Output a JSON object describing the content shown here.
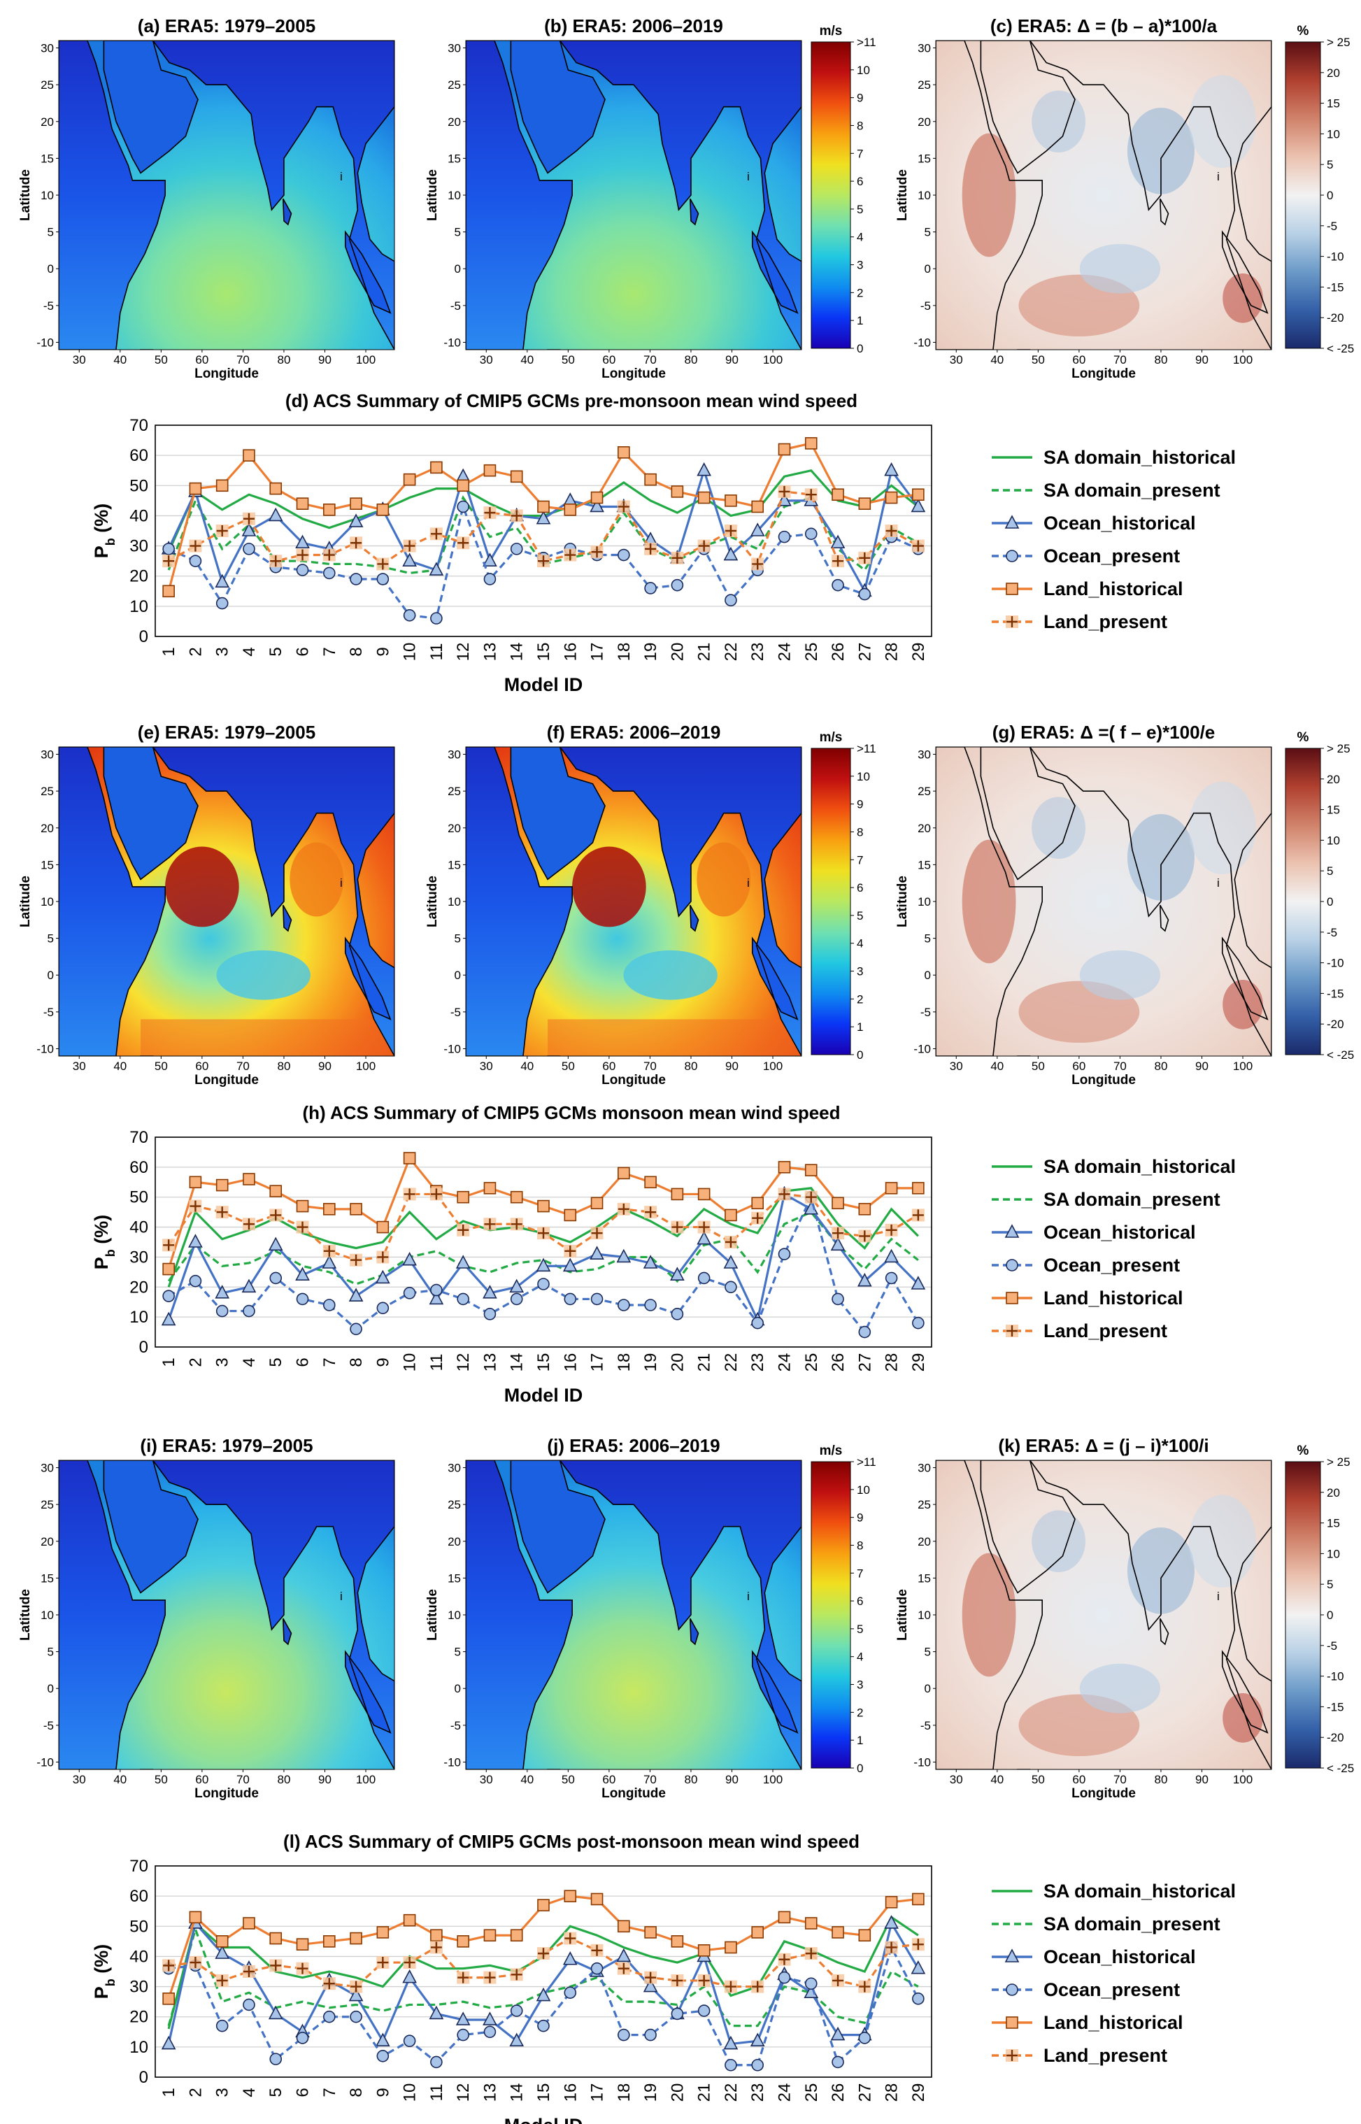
{
  "map_panels": [
    {
      "title": "(a) ERA5: 1979–2005",
      "kind": "speed",
      "season": "pre"
    },
    {
      "title": "(b) ERA5: 2006–2019",
      "kind": "speed",
      "season": "pre"
    },
    {
      "title": "(c) ERA5: Δ = (b – a)*100/a",
      "kind": "diff",
      "season": "pre"
    },
    {
      "title": "(e) ERA5: 1979–2005",
      "kind": "speed",
      "season": "mon"
    },
    {
      "title": "(f) ERA5: 2006–2019",
      "kind": "speed",
      "season": "mon"
    },
    {
      "title": "(g) ERA5: Δ =( f – e)*100/e",
      "kind": "diff",
      "season": "mon"
    },
    {
      "title": "(i) ERA5: 1979–2005",
      "kind": "speed",
      "season": "post"
    },
    {
      "title": "(j) ERA5: 2006–2019",
      "kind": "speed",
      "season": "post"
    },
    {
      "title": "(k) ERA5: Δ = (j – i)*100/i",
      "kind": "diff",
      "season": "post"
    }
  ],
  "map_axes": {
    "xlabel": "Longitude",
    "ylabel": "Latitude",
    "xticks": [
      "30",
      "40",
      "50",
      "60",
      "70",
      "80",
      "90",
      "100"
    ],
    "yticks": [
      "30",
      "25",
      "20",
      "15",
      "10",
      "5",
      "0",
      "-5",
      "-10"
    ],
    "island_label": "i"
  },
  "speed_colorbar": {
    "unit": "m/s",
    "ticks": [
      ">11",
      "10",
      "9",
      "8",
      "7",
      "6",
      "5",
      "4",
      "3",
      "2",
      "1",
      "0"
    ],
    "colors": [
      "#1a00b3",
      "#0a35f5",
      "#0f8cf0",
      "#22c8e0",
      "#70e0b0",
      "#b8e860",
      "#f0e020",
      "#f8a010",
      "#f05010",
      "#c01010",
      "#800000"
    ]
  },
  "diff_colorbar": {
    "unit": "%",
    "ticks": [
      "> 25",
      "20",
      "15",
      "10",
      "5",
      "0",
      "-5",
      "-10",
      "-15",
      "-20",
      "< -25"
    ],
    "colors": [
      "#1b2a6b",
      "#3360a8",
      "#6b9ac8",
      "#b9d1e6",
      "#f2f2f2",
      "#ebc2b0",
      "#d0826a",
      "#b0402f",
      "#5a0e14"
    ]
  },
  "chart_data": [
    {
      "type": "line",
      "title": "(d) ACS Summary of CMIP5 GCMs pre-monsoon mean wind speed",
      "xlabel": "Model ID",
      "ylabel": "P",
      "ylabel_sub": "b",
      "ylabel_unit": "(%)",
      "ylim": [
        0,
        70
      ],
      "yticks": [
        0,
        10,
        20,
        30,
        40,
        50,
        60,
        70
      ],
      "categories": [
        "1",
        "2",
        "3",
        "4",
        "5",
        "6",
        "7",
        "8",
        "9",
        "10",
        "11",
        "12",
        "13",
        "14",
        "15",
        "16",
        "17",
        "18",
        "19",
        "20",
        "21",
        "22",
        "23",
        "24",
        "25",
        "26",
        "27",
        "28",
        "29"
      ],
      "series": [
        {
          "name": "SA domain_historical",
          "color": "#22aa44",
          "dash": false,
          "marker": "none",
          "values": [
            28,
            48,
            42,
            47,
            44,
            39,
            36,
            39,
            42,
            46,
            49,
            49,
            44,
            40,
            40,
            43,
            45,
            51,
            45,
            41,
            46,
            40,
            42,
            53,
            55,
            45,
            43,
            50,
            43
          ]
        },
        {
          "name": "SA domain_present",
          "color": "#22aa44",
          "dash": true,
          "marker": "none",
          "values": [
            22,
            45,
            29,
            37,
            25,
            25,
            24,
            24,
            23,
            21,
            22,
            46,
            33,
            36,
            24,
            26,
            28,
            41,
            29,
            25,
            30,
            33,
            29,
            43,
            46,
            29,
            22,
            36,
            31
          ]
        },
        {
          "name": "Ocean_historical",
          "color": "#4472c4",
          "dash": false,
          "marker": "triangle",
          "values": [
            29,
            48,
            18,
            35,
            40,
            31,
            29,
            38,
            42,
            25,
            22,
            53,
            25,
            40,
            39,
            45,
            43,
            43,
            32,
            26,
            55,
            27,
            35,
            45,
            45,
            31,
            15,
            55,
            43
          ]
        },
        {
          "name": "Ocean_present",
          "color": "#4472c4",
          "dash": true,
          "marker": "circle",
          "values": [
            29,
            25,
            11,
            29,
            23,
            22,
            21,
            19,
            19,
            7,
            6,
            43,
            19,
            29,
            26,
            29,
            27,
            27,
            16,
            17,
            29,
            12,
            22,
            33,
            34,
            17,
            14,
            33,
            29
          ]
        },
        {
          "name": "Land_historical",
          "color": "#ed7d31",
          "dash": false,
          "marker": "square",
          "values": [
            15,
            49,
            50,
            60,
            49,
            44,
            42,
            44,
            42,
            52,
            56,
            50,
            55,
            53,
            43,
            42,
            46,
            61,
            52,
            48,
            46,
            45,
            43,
            62,
            64,
            47,
            44,
            46,
            47
          ]
        },
        {
          "name": "Land_present",
          "color": "#ed7d31",
          "dash": true,
          "marker": "plus",
          "values": [
            25,
            30,
            35,
            39,
            25,
            27,
            27,
            31,
            24,
            30,
            34,
            31,
            41,
            40,
            25,
            27,
            28,
            43,
            29,
            26,
            30,
            35,
            24,
            48,
            47,
            25,
            26,
            35,
            30
          ]
        }
      ]
    },
    {
      "type": "line",
      "title": "(h) ACS Summary of CMIP5 GCMs monsoon mean wind speed",
      "xlabel": "Model ID",
      "ylabel": "P",
      "ylabel_sub": "b",
      "ylabel_unit": "(%)",
      "ylim": [
        0,
        70
      ],
      "yticks": [
        0,
        10,
        20,
        30,
        40,
        50,
        60,
        70
      ],
      "categories": [
        "1",
        "2",
        "3",
        "4",
        "5",
        "6",
        "7",
        "8",
        "9",
        "10",
        "11",
        "12",
        "13",
        "14",
        "15",
        "16",
        "17",
        "18",
        "19",
        "20",
        "21",
        "22",
        "23",
        "24",
        "25",
        "26",
        "27",
        "28",
        "29"
      ],
      "series": [
        {
          "name": "SA domain_historical",
          "color": "#22aa44",
          "dash": false,
          "marker": "none",
          "values": [
            20,
            45,
            36,
            39,
            43,
            38,
            35,
            33,
            35,
            45,
            36,
            42,
            39,
            40,
            38,
            35,
            40,
            46,
            42,
            37,
            46,
            41,
            38,
            52,
            53,
            41,
            33,
            46,
            37
          ]
        },
        {
          "name": "SA domain_present",
          "color": "#22aa44",
          "dash": true,
          "marker": "none",
          "values": [
            22,
            34,
            27,
            28,
            32,
            27,
            25,
            21,
            24,
            30,
            32,
            27,
            25,
            28,
            29,
            25,
            26,
            30,
            30,
            22,
            34,
            36,
            25,
            41,
            45,
            34,
            26,
            36,
            29
          ]
        },
        {
          "name": "Ocean_historical",
          "color": "#4472c4",
          "dash": false,
          "marker": "triangle",
          "values": [
            9,
            35,
            18,
            20,
            34,
            24,
            28,
            17,
            23,
            29,
            16,
            28,
            18,
            20,
            27,
            27,
            31,
            30,
            28,
            24,
            36,
            28,
            9,
            51,
            46,
            34,
            22,
            30,
            21
          ]
        },
        {
          "name": "Ocean_present",
          "color": "#4472c4",
          "dash": true,
          "marker": "circle",
          "values": [
            17,
            22,
            12,
            12,
            23,
            16,
            14,
            6,
            13,
            18,
            19,
            16,
            11,
            16,
            21,
            16,
            16,
            14,
            14,
            11,
            23,
            20,
            8,
            31,
            50,
            16,
            5,
            23,
            8
          ]
        },
        {
          "name": "Land_historical",
          "color": "#ed7d31",
          "dash": false,
          "marker": "square",
          "values": [
            26,
            55,
            54,
            56,
            52,
            47,
            46,
            46,
            40,
            63,
            52,
            50,
            53,
            50,
            47,
            44,
            48,
            58,
            55,
            51,
            51,
            44,
            48,
            60,
            59,
            48,
            46,
            53,
            53
          ]
        },
        {
          "name": "Land_present",
          "color": "#ed7d31",
          "dash": true,
          "marker": "plus",
          "values": [
            34,
            47,
            45,
            41,
            44,
            40,
            32,
            29,
            30,
            51,
            51,
            39,
            41,
            41,
            38,
            32,
            38,
            46,
            45,
            40,
            40,
            35,
            43,
            51,
            50,
            38,
            37,
            39,
            44
          ]
        }
      ]
    },
    {
      "type": "line",
      "title": "(l) ACS Summary of CMIP5 GCMs post-monsoon mean wind speed",
      "xlabel": "Model ID",
      "ylabel": "P",
      "ylabel_sub": "b",
      "ylabel_unit": "(%)",
      "ylim": [
        0,
        70
      ],
      "yticks": [
        0,
        10,
        20,
        30,
        40,
        50,
        60,
        70
      ],
      "categories": [
        "1",
        "2",
        "3",
        "4",
        "5",
        "6",
        "7",
        "8",
        "9",
        "10",
        "11",
        "12",
        "13",
        "14",
        "15",
        "16",
        "17",
        "18",
        "19",
        "20",
        "21",
        "22",
        "23",
        "24",
        "25",
        "26",
        "27",
        "28",
        "29"
      ],
      "series": [
        {
          "name": "SA domain_historical",
          "color": "#22aa44",
          "dash": false,
          "marker": "none",
          "values": [
            16,
            51,
            43,
            43,
            35,
            33,
            35,
            33,
            30,
            40,
            36,
            36,
            37,
            35,
            40,
            50,
            47,
            43,
            40,
            38,
            41,
            27,
            30,
            45,
            42,
            38,
            35,
            53,
            47
          ]
        },
        {
          "name": "SA domain_present",
          "color": "#22aa44",
          "dash": true,
          "marker": "none",
          "values": [
            17,
            49,
            25,
            28,
            23,
            25,
            23,
            24,
            22,
            24,
            24,
            25,
            23,
            24,
            28,
            30,
            33,
            25,
            25,
            24,
            30,
            17,
            17,
            30,
            28,
            20,
            18,
            35,
            30
          ]
        },
        {
          "name": "Ocean_historical",
          "color": "#4472c4",
          "dash": false,
          "marker": "triangle",
          "values": [
            11,
            51,
            41,
            36,
            21,
            15,
            32,
            27,
            12,
            33,
            21,
            19,
            19,
            12,
            27,
            39,
            35,
            40,
            30,
            21,
            40,
            11,
            12,
            34,
            28,
            14,
            14,
            51,
            36
          ]
        },
        {
          "name": "Ocean_present",
          "color": "#4472c4",
          "dash": true,
          "marker": "circle",
          "values": [
            36,
            37,
            17,
            24,
            6,
            13,
            20,
            20,
            7,
            12,
            5,
            14,
            15,
            22,
            17,
            28,
            36,
            14,
            14,
            21,
            22,
            4,
            4,
            33,
            31,
            5,
            13,
            43,
            26
          ]
        },
        {
          "name": "Land_historical",
          "color": "#ed7d31",
          "dash": false,
          "marker": "square",
          "values": [
            26,
            53,
            45,
            51,
            46,
            44,
            45,
            46,
            48,
            52,
            47,
            45,
            47,
            47,
            57,
            60,
            59,
            50,
            48,
            45,
            42,
            43,
            48,
            53,
            51,
            48,
            47,
            58,
            59
          ]
        },
        {
          "name": "Land_present",
          "color": "#ed7d31",
          "dash": true,
          "marker": "plus",
          "values": [
            37,
            38,
            32,
            35,
            37,
            36,
            31,
            30,
            38,
            38,
            43,
            33,
            33,
            34,
            41,
            46,
            42,
            36,
            33,
            32,
            32,
            30,
            30,
            39,
            41,
            32,
            30,
            43,
            44
          ]
        }
      ]
    }
  ]
}
